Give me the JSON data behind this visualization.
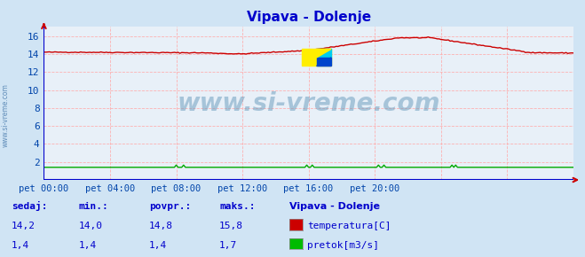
{
  "title": "Vipava - Dolenje",
  "title_color": "#0000cc",
  "bg_color": "#d0e4f4",
  "plot_bg_color": "#e8f0f8",
  "grid_color": "#ffaaaa",
  "temp_color": "#cc0000",
  "flow_color": "#00aa00",
  "blue_line_color": "#0000cc",
  "red_arrow_color": "#cc0000",
  "x_label_color": "#0044aa",
  "y_label_color": "#0044aa",
  "watermark_text": "www.si-vreme.com",
  "watermark_color": "#6699bb",
  "watermark_alpha": 0.5,
  "side_text": "www.si-vreme.com",
  "side_text_color": "#4477aa",
  "x_tick_positions": [
    0,
    288,
    576,
    864,
    1152,
    1440,
    1728,
    2016
  ],
  "x_tick_labels": [
    "pet 00:00",
    "pet 04:00",
    "pet 08:00",
    "pet 12:00",
    "pet 16:00",
    "pet 20:00",
    "",
    ""
  ],
  "y_tick_positions": [
    2,
    4,
    6,
    8,
    10,
    12,
    14,
    16
  ],
  "y_lim": [
    0,
    17
  ],
  "x_lim": [
    0,
    2304
  ],
  "legend_title": "Vipava - Dolenje",
  "legend_labels": [
    "temperatura[C]",
    "pretok[m3/s]"
  ],
  "legend_colors": [
    "#cc0000",
    "#00bb00"
  ],
  "stats_headers": [
    "sedaj:",
    "min.:",
    "povpr.:",
    "maks.:"
  ],
  "stats_temp": [
    "14,2",
    "14,0",
    "14,8",
    "15,8"
  ],
  "stats_flow": [
    "1,4",
    "1,4",
    "1,4",
    "1,7"
  ],
  "stats_color": "#0000cc",
  "n_points": 289
}
